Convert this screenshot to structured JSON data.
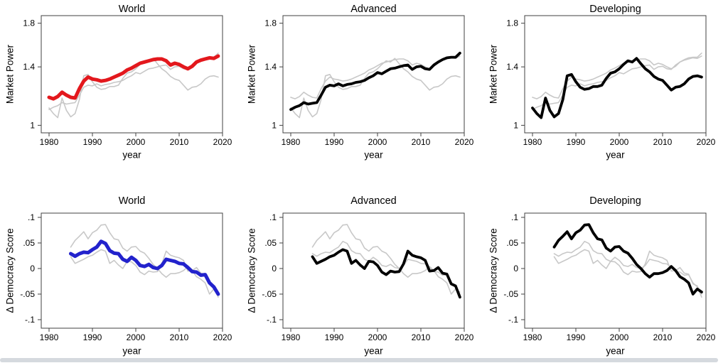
{
  "figure": {
    "background": "#ffffff",
    "bottom_edge_color": "#d5d9de"
  },
  "colors": {
    "world_market_power": "#e3181d",
    "world_democracy": "#2222cc",
    "highlight_black": "#000000",
    "context_gray": "#c8c8c8",
    "frame": "#404040",
    "text": "#000000"
  },
  "chart_data": {
    "type": "line",
    "grid": "off",
    "legend": "none",
    "rows": [
      {
        "id": "market_power",
        "ylabel": "Market Power",
        "xlabel": "year",
        "yscale": "log",
        "y_ticks": [
          1,
          1.4,
          1.8
        ],
        "y_tick_labels": [
          "1",
          "1.4",
          "1.8"
        ],
        "x_ticks": [
          1980,
          1990,
          2000,
          2010,
          2020
        ],
        "x_tick_labels": [
          "1980",
          "1990",
          "2000",
          "2010",
          "2020"
        ],
        "xlim": [
          1978.2,
          2020.2
        ],
        "ylim": [
          0.96,
          1.88
        ],
        "years": [
          1980,
          1981,
          1982,
          1983,
          1984,
          1985,
          1986,
          1987,
          1988,
          1989,
          1990,
          1991,
          1992,
          1993,
          1994,
          1995,
          1996,
          1997,
          1998,
          1999,
          2000,
          2001,
          2002,
          2003,
          2004,
          2005,
          2006,
          2007,
          2008,
          2009,
          2010,
          2011,
          2012,
          2013,
          2014,
          2015,
          2016,
          2017,
          2018,
          2019
        ],
        "series": {
          "World": [
            1.175,
            1.165,
            1.18,
            1.21,
            1.19,
            1.175,
            1.17,
            1.235,
            1.29,
            1.32,
            1.305,
            1.3,
            1.29,
            1.295,
            1.305,
            1.32,
            1.335,
            1.35,
            1.375,
            1.39,
            1.41,
            1.43,
            1.44,
            1.45,
            1.46,
            1.465,
            1.465,
            1.45,
            1.415,
            1.43,
            1.42,
            1.4,
            1.385,
            1.405,
            1.44,
            1.455,
            1.465,
            1.475,
            1.47,
            1.49
          ],
          "Advanced": [
            1.095,
            1.11,
            1.12,
            1.14,
            1.13,
            1.135,
            1.14,
            1.19,
            1.245,
            1.26,
            1.255,
            1.27,
            1.255,
            1.265,
            1.27,
            1.28,
            1.285,
            1.295,
            1.315,
            1.33,
            1.355,
            1.345,
            1.365,
            1.385,
            1.39,
            1.4,
            1.41,
            1.415,
            1.38,
            1.4,
            1.405,
            1.385,
            1.38,
            1.415,
            1.44,
            1.46,
            1.475,
            1.48,
            1.48,
            1.515
          ],
          "Developing": [
            1.105,
            1.07,
            1.045,
            1.17,
            1.09,
            1.05,
            1.07,
            1.16,
            1.33,
            1.34,
            1.285,
            1.245,
            1.23,
            1.235,
            1.25,
            1.25,
            1.26,
            1.31,
            1.35,
            1.36,
            1.385,
            1.42,
            1.45,
            1.44,
            1.47,
            1.425,
            1.385,
            1.36,
            1.325,
            1.305,
            1.295,
            1.26,
            1.225,
            1.245,
            1.25,
            1.27,
            1.305,
            1.325,
            1.33,
            1.32
          ]
        },
        "panels": [
          {
            "title": "World",
            "highlight": "World",
            "highlight_color": "#e3181d",
            "context_color": "#c8c8c8"
          },
          {
            "title": "Advanced",
            "highlight": "Advanced",
            "highlight_color": "#000000",
            "context_color": "#c8c8c8"
          },
          {
            "title": "Developing",
            "highlight": "Developing",
            "highlight_color": "#000000",
            "context_color": "#c8c8c8"
          }
        ]
      },
      {
        "id": "democracy",
        "ylabel": "Δ Democracy Score",
        "xlabel": "year",
        "yscale": "linear",
        "y_ticks": [
          -0.1,
          -0.05,
          0,
          0.05,
          0.1
        ],
        "y_tick_labels": [
          "-.1",
          "-.05",
          "0",
          ".05",
          ".1"
        ],
        "x_ticks": [
          1980,
          1990,
          2000,
          2010,
          2020
        ],
        "x_tick_labels": [
          "1980",
          "1990",
          "2000",
          "2010",
          "2020"
        ],
        "xlim": [
          1978.2,
          2020.2
        ],
        "ylim": [
          -0.114,
          0.111
        ],
        "years": [
          1985,
          1986,
          1987,
          1988,
          1989,
          1990,
          1991,
          1992,
          1993,
          1994,
          1995,
          1996,
          1997,
          1998,
          1999,
          2000,
          2001,
          2002,
          2003,
          2004,
          2005,
          2006,
          2007,
          2008,
          2009,
          2010,
          2011,
          2012,
          2013,
          2014,
          2015,
          2016,
          2017,
          2018,
          2019
        ],
        "series": {
          "World": [
            0.029,
            0.024,
            0.029,
            0.032,
            0.031,
            0.037,
            0.042,
            0.053,
            0.049,
            0.035,
            0.03,
            0.029,
            0.018,
            0.014,
            0.022,
            0.016,
            0.006,
            0.004,
            0.008,
            0.002,
            0,
            0.006,
            0.018,
            0.016,
            0.014,
            0.01,
            0.009,
            0.002,
            -0.006,
            -0.007,
            -0.013,
            -0.012,
            -0.028,
            -0.036,
            -0.05
          ],
          "Advanced": [
            0.023,
            0.01,
            0.014,
            0.018,
            0.023,
            0.026,
            0.032,
            0.037,
            0.034,
            0.01,
            0.016,
            0.007,
            0,
            0.014,
            0.013,
            0.006,
            -0.007,
            -0.012,
            -0.005,
            -0.007,
            -0.006,
            0.009,
            0.034,
            0.026,
            0.023,
            0.021,
            0.016,
            -0.005,
            -0.004,
            0.002,
            -0.009,
            -0.011,
            -0.03,
            -0.034,
            -0.056
          ],
          "Developing": [
            0.042,
            0.055,
            0.063,
            0.072,
            0.058,
            0.07,
            0.075,
            0.085,
            0.086,
            0.07,
            0.058,
            0.056,
            0.04,
            0.034,
            0.042,
            0.043,
            0.034,
            0.03,
            0.02,
            0.008,
            0,
            -0.01,
            -0.017,
            -0.01,
            -0.01,
            -0.008,
            -0.004,
            0.004,
            -0.004,
            -0.016,
            -0.021,
            -0.028,
            -0.05,
            -0.04,
            -0.046
          ]
        },
        "panels": [
          {
            "title": "World",
            "highlight": "World",
            "highlight_color": "#2222cc",
            "context_color": "#c8c8c8"
          },
          {
            "title": "Advanced",
            "highlight": "Advanced",
            "highlight_color": "#000000",
            "context_color": "#c8c8c8"
          },
          {
            "title": "Developing",
            "highlight": "Developing",
            "highlight_color": "#000000",
            "context_color": "#c8c8c8"
          }
        ]
      }
    ]
  }
}
